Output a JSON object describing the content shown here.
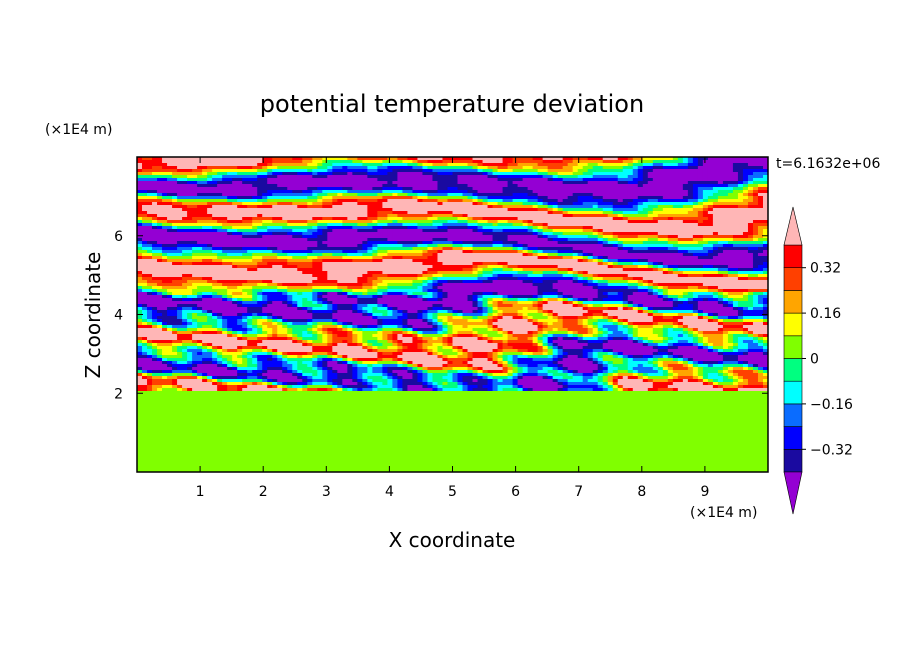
{
  "chart_data": {
    "type": "heatmap",
    "title": "potential temperature deviation",
    "xlabel": "X coordinate",
    "ylabel": "Z coordinate",
    "x_unit": "(×1E4 m)",
    "y_unit": "(×1E4 m)",
    "time_label": "t=6.1632e+06",
    "xlim": [
      0,
      10
    ],
    "ylim": [
      0,
      8
    ],
    "x_ticks": [
      1,
      2,
      3,
      4,
      5,
      6,
      7,
      8,
      9
    ],
    "y_ticks": [
      2,
      4,
      6
    ],
    "grid": false,
    "legend_placement": "right",
    "colorbar": {
      "labels": [
        "0.32",
        "0.16",
        "0",
        "−0.16",
        "−0.32"
      ],
      "levels": [
        -0.4,
        -0.32,
        -0.24,
        -0.16,
        -0.08,
        0,
        0.08,
        0.16,
        0.24,
        0.32,
        0.4
      ],
      "colors": [
        "#9400d3",
        "#1a0aa0",
        "#0000ff",
        "#0a6cff",
        "#00ffff",
        "#00ff80",
        "#80ff00",
        "#ffff00",
        "#ffa500",
        "#ff4000",
        "#ff0000",
        "#ffb6b6"
      ],
      "extend": "both"
    },
    "field_regions": [
      {
        "name": "lower-layer",
        "z_range": [
          0,
          2.1
        ],
        "dominant_values": [
          0,
          0.05
        ]
      },
      {
        "name": "turbulent-mid-layer",
        "z_range": [
          2.1,
          4.3
        ],
        "dominant_values": [
          -0.4,
          0.4
        ]
      },
      {
        "name": "upper-banded-layer",
        "z_range": [
          4.3,
          8
        ],
        "dominant_values": [
          -0.45,
          0.45
        ]
      }
    ]
  }
}
